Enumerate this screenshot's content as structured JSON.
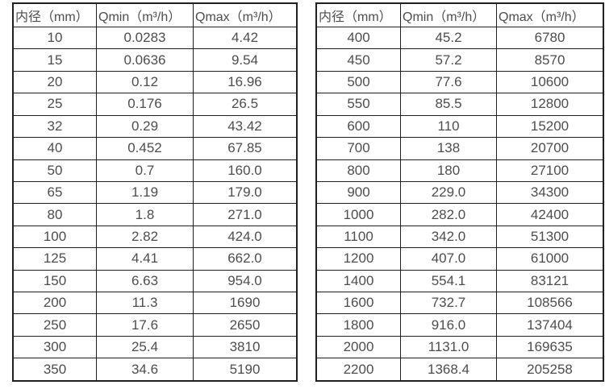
{
  "colors": {
    "background": "#ffffff",
    "border": "#1f1f1f",
    "text": "#4d4d4d"
  },
  "chart_data": [
    {
      "type": "table",
      "name": "flow-range-table-dn10-350",
      "headers": [
        "内径（mm）",
        "Qmin（m³/h）",
        "Qmax（m³/h）"
      ],
      "rows": [
        [
          "10",
          "0.0283",
          "4.42"
        ],
        [
          "15",
          "0.0636",
          "9.54"
        ],
        [
          "20",
          "0.12",
          "16.96"
        ],
        [
          "25",
          "0.176",
          "26.5"
        ],
        [
          "32",
          "0.29",
          "43.42"
        ],
        [
          "40",
          "0.452",
          "67.85"
        ],
        [
          "50",
          "0.7",
          "160.0"
        ],
        [
          "65",
          "1.19",
          "179.0"
        ],
        [
          "80",
          "1.8",
          "271.0"
        ],
        [
          "100",
          "2.82",
          "424.0"
        ],
        [
          "125",
          "4.41",
          "662.0"
        ],
        [
          "150",
          "6.63",
          "954.0"
        ],
        [
          "200",
          "11.3",
          "1690"
        ],
        [
          "250",
          "17.6",
          "2650"
        ],
        [
          "300",
          "25.4",
          "3810"
        ],
        [
          "350",
          "34.6",
          "5190"
        ]
      ]
    },
    {
      "type": "table",
      "name": "flow-range-table-dn400-2200",
      "headers": [
        "内径（mm）",
        "Qmin（m³/h）",
        "Qmax（m³/h）"
      ],
      "rows": [
        [
          "400",
          "45.2",
          "6780"
        ],
        [
          "450",
          "57.2",
          "8570"
        ],
        [
          "500",
          "77.6",
          "10600"
        ],
        [
          "550",
          "85.5",
          "12800"
        ],
        [
          "600",
          "110",
          "15200"
        ],
        [
          "700",
          "138",
          "20700"
        ],
        [
          "800",
          "180",
          "27100"
        ],
        [
          "900",
          "229.0",
          "34300"
        ],
        [
          "1000",
          "282.0",
          "42400"
        ],
        [
          "1100",
          "342.0",
          "51300"
        ],
        [
          "1200",
          "407.0",
          "61000"
        ],
        [
          "1400",
          "554.1",
          "83121"
        ],
        [
          "1600",
          "732.7",
          "108566"
        ],
        [
          "1800",
          "916.0",
          "137404"
        ],
        [
          "2000",
          "1131.0",
          "169635"
        ],
        [
          "2200",
          "1368.4",
          "205258"
        ]
      ]
    }
  ]
}
